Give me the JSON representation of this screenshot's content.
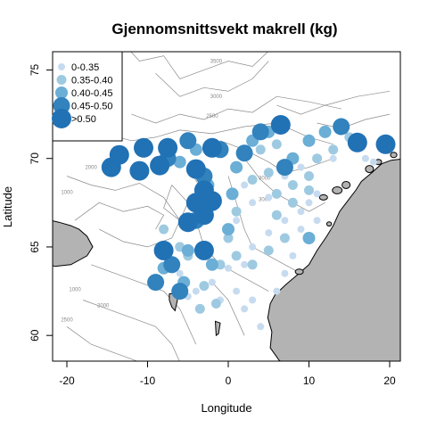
{
  "chart_data": {
    "type": "scatter",
    "title": "Gjennomsnittsvekt makrell (kg)",
    "xlabel": "Longitude",
    "ylabel": "Latitude",
    "xlim": [
      -22,
      21.5
    ],
    "ylim": [
      57.2,
      76.8
    ],
    "xticks": [
      -20,
      -10,
      0,
      10,
      20
    ],
    "yticks": [
      60,
      65,
      70,
      75
    ],
    "grid": false,
    "legend": {
      "position": "top-left",
      "entries": [
        {
          "label": "0-0.35",
          "color": "#c6dbef"
        },
        {
          "label": "0.35-0.40",
          "color": "#9ecae1"
        },
        {
          "label": "0.40-0.45",
          "color": "#6baed6"
        },
        {
          "label": "0.45-0.50",
          "color": "#3182bd"
        },
        {
          "label": ">0.50",
          "color": "#2171b5"
        }
      ]
    },
    "depth_contours": [
      "3500",
      "3000",
      "2500",
      "2000",
      "1000",
      "3000",
      "3000",
      "1000",
      "2000",
      "2500"
    ],
    "series": [
      {
        "name": "0-0.35",
        "points": [
          [
            -6,
            63.5
          ],
          [
            -4,
            62.5
          ],
          [
            -1,
            62.0
          ],
          [
            1,
            62.5
          ],
          [
            2,
            61.5
          ],
          [
            4,
            60.5
          ],
          [
            3,
            62.0
          ],
          [
            6,
            62.5
          ],
          [
            7,
            63.5
          ],
          [
            8,
            64.5
          ],
          [
            -2,
            63.0
          ],
          [
            0,
            63.8
          ],
          [
            2,
            64.0
          ],
          [
            3,
            65.0
          ],
          [
            5,
            65.8
          ],
          [
            7,
            66.5
          ],
          [
            9,
            67.0
          ],
          [
            10,
            67.5
          ],
          [
            11,
            68.0
          ],
          [
            1,
            66.5
          ],
          [
            3,
            67.5
          ],
          [
            5,
            67.8
          ],
          [
            2,
            68.5
          ],
          [
            7,
            69.0
          ],
          [
            9,
            69.5
          ],
          [
            13,
            70.0
          ],
          [
            17,
            70.0
          ],
          [
            18,
            69.8
          ],
          [
            -9,
            62.8
          ],
          [
            -5,
            62.2
          ],
          [
            9,
            66.0
          ],
          [
            11,
            66.5
          ]
        ]
      },
      {
        "name": "0.35-0.40",
        "points": [
          [
            -3.5,
            61.5
          ],
          [
            -1.5,
            61.8
          ],
          [
            -3,
            62.8
          ],
          [
            -7,
            63.8
          ],
          [
            -5,
            64.5
          ],
          [
            -1,
            64.0
          ],
          [
            1,
            64.5
          ],
          [
            3,
            64.0
          ],
          [
            5,
            64.8
          ],
          [
            7,
            65.5
          ],
          [
            1,
            67.0
          ],
          [
            3,
            68.8
          ],
          [
            5,
            69.2
          ],
          [
            6,
            68.0
          ],
          [
            8,
            68.5
          ],
          [
            10,
            69.0
          ],
          [
            11,
            70.0
          ],
          [
            13,
            70.5
          ],
          [
            15,
            71.2
          ],
          [
            -8,
            66.0
          ],
          [
            -6,
            65.0
          ],
          [
            0,
            65.5
          ],
          [
            6,
            66.8
          ],
          [
            8,
            67.5
          ],
          [
            10,
            68.2
          ],
          [
            4,
            70.5
          ],
          [
            6,
            70.8
          ]
        ]
      },
      {
        "name": "0.40-0.45",
        "points": [
          [
            -8,
            63.8
          ],
          [
            -5.5,
            63.0
          ],
          [
            -2,
            64.0
          ],
          [
            0,
            66.0
          ],
          [
            0.5,
            68.0
          ],
          [
            1,
            69.5
          ],
          [
            3,
            71.0
          ],
          [
            5,
            71.5
          ],
          [
            8,
            70.0
          ],
          [
            10,
            71.0
          ],
          [
            12,
            71.5
          ],
          [
            10,
            65.5
          ],
          [
            -6,
            69.8
          ],
          [
            -4,
            70.5
          ],
          [
            -5,
            64.8
          ],
          [
            -2.5,
            68.5
          ]
        ]
      },
      {
        "name": "0.45-0.50",
        "points": [
          [
            -7,
            64.0
          ],
          [
            -6,
            62.5
          ],
          [
            -4,
            66.5
          ],
          [
            -2,
            67.5
          ],
          [
            -3,
            69.0
          ],
          [
            -7.5,
            70.0
          ],
          [
            -5,
            71.0
          ],
          [
            -1,
            70.5
          ],
          [
            2,
            70.3
          ],
          [
            4,
            71.5
          ],
          [
            7,
            69.5
          ],
          [
            14,
            71.8
          ],
          [
            -9,
            63.0
          ]
        ]
      },
      {
        "name": ">0.50",
        "points": [
          [
            -14.5,
            69.5
          ],
          [
            -13.5,
            70.2
          ],
          [
            -11,
            69.3
          ],
          [
            -10.5,
            70.6
          ],
          [
            -8.5,
            69.6
          ],
          [
            -7.5,
            70.6
          ],
          [
            -4,
            69.4
          ],
          [
            -2,
            70.6
          ],
          [
            -3,
            68.2
          ],
          [
            -4,
            67.5
          ],
          [
            -2,
            67.6
          ],
          [
            -5,
            66.4
          ],
          [
            -3,
            66.8
          ],
          [
            -8,
            64.8
          ],
          [
            -3,
            64.8
          ],
          [
            6.5,
            71.9
          ],
          [
            16,
            70.9
          ],
          [
            19.5,
            70.8
          ]
        ]
      }
    ]
  }
}
